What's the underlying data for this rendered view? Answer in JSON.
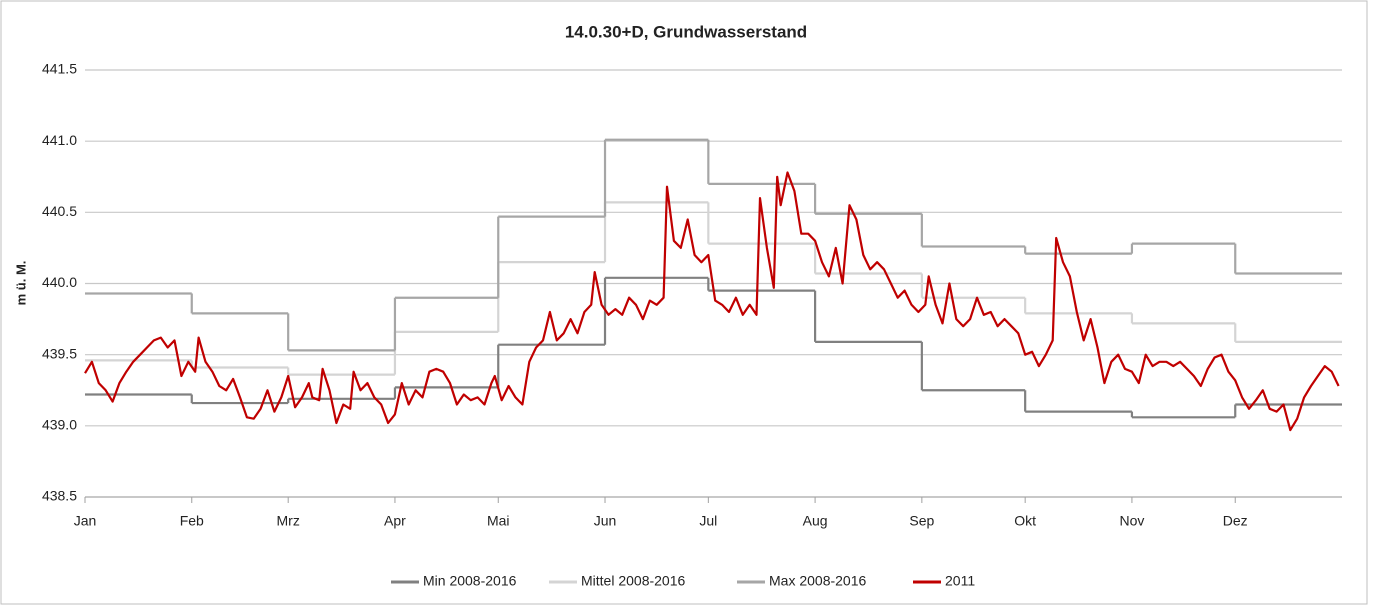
{
  "chart_data": {
    "type": "line",
    "title": "14.0.30+D, Grundwasserstand",
    "y_label": "m ü. M.",
    "xlim": [
      0,
      365
    ],
    "xticks": [
      {
        "value": 0,
        "label": "Jan"
      },
      {
        "value": 31,
        "label": "Feb"
      },
      {
        "value": 59,
        "label": "Mrz"
      },
      {
        "value": 90,
        "label": "Apr"
      },
      {
        "value": 120,
        "label": "Mai"
      },
      {
        "value": 151,
        "label": "Jun"
      },
      {
        "value": 181,
        "label": "Jul"
      },
      {
        "value": 212,
        "label": "Aug"
      },
      {
        "value": 243,
        "label": "Sep"
      },
      {
        "value": 273,
        "label": "Okt"
      },
      {
        "value": 304,
        "label": "Nov"
      },
      {
        "value": 334,
        "label": "Dez"
      }
    ],
    "ylim": [
      438.5,
      441.5
    ],
    "yticks": [
      {
        "value": 438.5,
        "label": "438.5"
      },
      {
        "value": 439,
        "label": "439.0"
      },
      {
        "value": 439.5,
        "label": "439.5"
      },
      {
        "value": 440,
        "label": "440.0"
      },
      {
        "value": 440.5,
        "label": "440.5"
      },
      {
        "value": 441,
        "label": "441.0"
      },
      {
        "value": 441.5,
        "label": "441.5"
      }
    ],
    "grid": true,
    "legend": "bottom",
    "series": [
      {
        "name": "Min 2008-2016",
        "color": "#808080",
        "step": "post",
        "x": [
          0,
          31,
          59,
          90,
          120,
          151,
          181,
          212,
          243,
          273,
          304,
          334
        ],
        "values": [
          439.22,
          439.16,
          439.19,
          439.27,
          439.57,
          440.04,
          439.95,
          439.59,
          439.25,
          439.1,
          439.06,
          439.15
        ]
      },
      {
        "name": "Mittel 2008-2016",
        "color": "#d4d4d4",
        "step": "post",
        "x": [
          0,
          31,
          59,
          90,
          120,
          151,
          181,
          212,
          243,
          273,
          304,
          334
        ],
        "values": [
          439.46,
          439.41,
          439.36,
          439.66,
          440.15,
          440.57,
          440.28,
          440.07,
          439.9,
          439.79,
          439.72,
          439.59
        ]
      },
      {
        "name": "Max 2008-2016",
        "color": "#a6a6a6",
        "step": "post",
        "x": [
          0,
          31,
          59,
          90,
          120,
          151,
          181,
          212,
          243,
          273,
          304,
          334
        ],
        "values": [
          439.93,
          439.79,
          439.53,
          439.9,
          440.47,
          441.01,
          440.7,
          440.49,
          440.26,
          440.21,
          440.28,
          440.07
        ]
      },
      {
        "name": "2011",
        "color": "#c00000",
        "x": [
          0,
          2,
          4,
          6,
          8,
          10,
          12,
          14,
          16,
          18,
          20,
          22,
          24,
          26,
          28,
          30,
          32,
          33,
          35,
          37,
          39,
          41,
          43,
          45,
          47,
          49,
          51,
          53,
          55,
          57,
          59,
          61,
          63,
          65,
          66,
          68,
          69,
          71,
          73,
          75,
          77,
          78,
          80,
          82,
          84,
          86,
          88,
          90,
          92,
          94,
          96,
          98,
          100,
          102,
          104,
          106,
          108,
          110,
          112,
          114,
          116,
          118,
          119,
          121,
          123,
          125,
          127,
          129,
          131,
          133,
          135,
          137,
          139,
          141,
          143,
          145,
          147,
          148,
          150,
          152,
          154,
          156,
          158,
          160,
          162,
          164,
          166,
          168,
          169,
          171,
          173,
          175,
          177,
          179,
          181,
          183,
          185,
          187,
          189,
          191,
          193,
          195,
          196,
          198,
          200,
          201,
          202,
          204,
          206,
          208,
          210,
          212,
          214,
          216,
          218,
          220,
          222,
          224,
          226,
          228,
          230,
          232,
          234,
          236,
          238,
          240,
          242,
          244,
          245,
          247,
          249,
          251,
          253,
          255,
          257,
          259,
          261,
          263,
          265,
          267,
          269,
          271,
          273,
          275,
          277,
          279,
          281,
          282,
          284,
          286,
          288,
          290,
          292,
          294,
          296,
          298,
          300,
          302,
          304,
          306,
          308,
          310,
          312,
          314,
          316,
          318,
          320,
          322,
          324,
          326,
          328,
          330,
          332,
          334,
          336,
          338,
          340,
          342,
          344,
          346,
          348,
          350,
          352,
          354,
          356,
          358,
          360,
          362,
          364
        ],
        "values": [
          439.37,
          439.45,
          439.3,
          439.25,
          439.17,
          439.3,
          439.38,
          439.45,
          439.5,
          439.55,
          439.6,
          439.62,
          439.55,
          439.6,
          439.35,
          439.45,
          439.38,
          439.62,
          439.45,
          439.38,
          439.28,
          439.25,
          439.33,
          439.2,
          439.06,
          439.05,
          439.12,
          439.25,
          439.1,
          439.2,
          439.35,
          439.13,
          439.2,
          439.3,
          439.2,
          439.18,
          439.4,
          439.25,
          439.02,
          439.15,
          439.12,
          439.38,
          439.25,
          439.3,
          439.2,
          439.15,
          439.02,
          439.08,
          439.3,
          439.15,
          439.25,
          439.2,
          439.38,
          439.4,
          439.38,
          439.3,
          439.15,
          439.22,
          439.18,
          439.2,
          439.15,
          439.3,
          439.35,
          439.18,
          439.28,
          439.2,
          439.15,
          439.45,
          439.55,
          439.6,
          439.8,
          439.6,
          439.65,
          439.75,
          439.65,
          439.8,
          439.85,
          440.08,
          439.85,
          439.78,
          439.82,
          439.78,
          439.9,
          439.85,
          439.75,
          439.88,
          439.85,
          439.9,
          440.68,
          440.3,
          440.25,
          440.45,
          440.2,
          440.15,
          440.2,
          439.88,
          439.85,
          439.8,
          439.9,
          439.78,
          439.85,
          439.78,
          440.6,
          440.25,
          439.97,
          440.75,
          440.55,
          440.78,
          440.65,
          440.35,
          440.35,
          440.3,
          440.15,
          440.05,
          440.25,
          440.0,
          440.55,
          440.45,
          440.2,
          440.1,
          440.15,
          440.1,
          440.0,
          439.9,
          439.95,
          439.85,
          439.8,
          439.85,
          440.05,
          439.85,
          439.72,
          440.0,
          439.75,
          439.7,
          439.75,
          439.9,
          439.78,
          439.8,
          439.7,
          439.75,
          439.7,
          439.65,
          439.5,
          439.52,
          439.42,
          439.5,
          439.6,
          440.32,
          440.15,
          440.05,
          439.8,
          439.6,
          439.75,
          439.55,
          439.3,
          439.45,
          439.5,
          439.4,
          439.38,
          439.3,
          439.5,
          439.42,
          439.45,
          439.45,
          439.42,
          439.45,
          439.4,
          439.35,
          439.28,
          439.4,
          439.48,
          439.5,
          439.38,
          439.32,
          439.2,
          439.12,
          439.18,
          439.25,
          439.12,
          439.1,
          439.15,
          438.97,
          439.05,
          439.2,
          439.28,
          439.35,
          439.42,
          439.38,
          439.28
        ]
      }
    ]
  }
}
